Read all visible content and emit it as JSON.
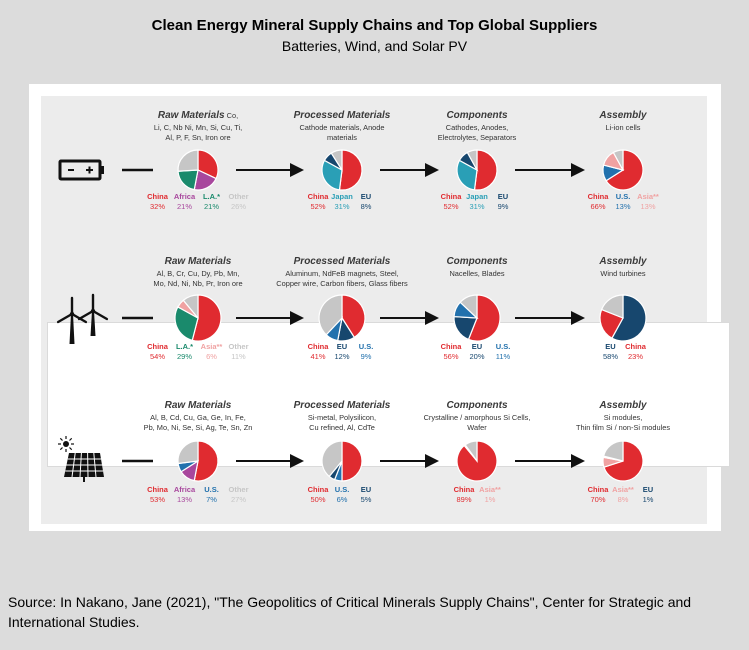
{
  "title": "Clean Energy Mineral Supply Chains and Top Global Suppliers",
  "subtitle": "Batteries, Wind, and Solar PV",
  "source": "Source: In Nakano, Jane (2021), \"The Geopolitics of Critical Minerals Supply Chains\", Center for Strategic and International Studies.",
  "colors": {
    "China": "#e02b30",
    "Africa": "#a8479d",
    "L.A.*": "#1a8a6c",
    "Other": "#c6c6c6",
    "Japan": "#2a9fb6",
    "EU": "#17476e",
    "U.S.": "#2271ad",
    "Asia**": "#f0a2a2"
  },
  "chart_data": [
    {
      "type": "pie",
      "row": "Batteries",
      "icon": "battery-icon",
      "stage": "Raw Materials",
      "desc": [
        "Li, C, Nb Ni, Mn, Si, Cu, Ti,",
        "Al, P, F, Sn, Iron ore"
      ],
      "heading_inline": "Co,",
      "slices": [
        {
          "name": "China",
          "value": 32
        },
        {
          "name": "Africa",
          "value": 21
        },
        {
          "name": "L.A.*",
          "value": 21
        },
        {
          "name": "Other",
          "value": 26
        }
      ],
      "labels": [
        {
          "name": "China",
          "value": "32%"
        },
        {
          "name": "Africa",
          "value": "21%"
        },
        {
          "name": "L.A.*",
          "value": "21%"
        },
        {
          "name": "Other",
          "value": "26%"
        }
      ]
    },
    {
      "type": "pie",
      "row": "Batteries",
      "stage": "Processed Materials",
      "desc": [
        "Cathode materials, Anode",
        "materials"
      ],
      "slices": [
        {
          "name": "China",
          "value": 52
        },
        {
          "name": "Japan",
          "value": 31
        },
        {
          "name": "EU",
          "value": 8
        },
        {
          "name": "Other",
          "value": 9
        }
      ],
      "labels": [
        {
          "name": "China",
          "value": "52%"
        },
        {
          "name": "Japan",
          "value": "31%"
        },
        {
          "name": "EU",
          "value": "8%"
        }
      ]
    },
    {
      "type": "pie",
      "row": "Batteries",
      "stage": "Components",
      "desc": [
        "Cathodes, Anodes,",
        "Electrolytes, Separators"
      ],
      "slices": [
        {
          "name": "China",
          "value": 52
        },
        {
          "name": "Japan",
          "value": 31
        },
        {
          "name": "EU",
          "value": 9
        },
        {
          "name": "Other",
          "value": 8
        }
      ],
      "labels": [
        {
          "name": "China",
          "value": "52%"
        },
        {
          "name": "Japan",
          "value": "31%"
        },
        {
          "name": "EU",
          "value": "9%"
        }
      ]
    },
    {
      "type": "pie",
      "row": "Batteries",
      "stage": "Assembly",
      "desc": [
        "Li-ion cells"
      ],
      "slices": [
        {
          "name": "China",
          "value": 66
        },
        {
          "name": "U.S.",
          "value": 13
        },
        {
          "name": "Asia**",
          "value": 13
        },
        {
          "name": "Other",
          "value": 8
        }
      ],
      "labels": [
        {
          "name": "China",
          "value": "66%"
        },
        {
          "name": "U.S.",
          "value": "13%"
        },
        {
          "name": "Asia**",
          "value": "13%"
        }
      ]
    },
    {
      "type": "pie",
      "row": "Wind",
      "icon": "wind-turbine-icon",
      "stage": "Raw Materials",
      "desc": [
        "Al, B, Cr, Cu, Dy, Pb, Mn,",
        "Mo, Nd, Ni, Nb, Pr, Iron ore"
      ],
      "slices": [
        {
          "name": "China",
          "value": 54
        },
        {
          "name": "L.A.*",
          "value": 29
        },
        {
          "name": "Asia**",
          "value": 6
        },
        {
          "name": "Other",
          "value": 11
        }
      ],
      "labels": [
        {
          "name": "China",
          "value": "54%"
        },
        {
          "name": "L.A.*",
          "value": "29%"
        },
        {
          "name": "Asia**",
          "value": "6%"
        },
        {
          "name": "Other",
          "value": "11%"
        }
      ]
    },
    {
      "type": "pie",
      "row": "Wind",
      "stage": "Processed Materials",
      "desc": [
        "Aluminum, NdFeB magnets, Steel,",
        "Copper wire, Carbon fibers, Glass fibers"
      ],
      "slices": [
        {
          "name": "China",
          "value": 41
        },
        {
          "name": "EU",
          "value": 12
        },
        {
          "name": "U.S.",
          "value": 9
        },
        {
          "name": "Other",
          "value": 38
        }
      ],
      "labels": [
        {
          "name": "China",
          "value": "41%"
        },
        {
          "name": "EU",
          "value": "12%"
        },
        {
          "name": "U.S.",
          "value": "9%"
        }
      ]
    },
    {
      "type": "pie",
      "row": "Wind",
      "stage": "Components",
      "desc": [
        "Nacelles, Blades"
      ],
      "slices": [
        {
          "name": "China",
          "value": 56
        },
        {
          "name": "EU",
          "value": 20
        },
        {
          "name": "U.S.",
          "value": 11
        },
        {
          "name": "Other",
          "value": 13
        }
      ],
      "labels": [
        {
          "name": "China",
          "value": "56%"
        },
        {
          "name": "EU",
          "value": "20%"
        },
        {
          "name": "U.S.",
          "value": "11%"
        }
      ]
    },
    {
      "type": "pie",
      "row": "Wind",
      "stage": "Assembly",
      "desc": [
        "Wind turbines"
      ],
      "slices": [
        {
          "name": "EU",
          "value": 58
        },
        {
          "name": "China",
          "value": 23
        },
        {
          "name": "Other",
          "value": 19
        }
      ],
      "labels": [
        {
          "name": "EU",
          "value": "58%"
        },
        {
          "name": "China",
          "value": "23%"
        }
      ]
    },
    {
      "type": "pie",
      "row": "Solar PV",
      "icon": "solar-panel-icon",
      "stage": "Raw Materials",
      "desc": [
        "Al, B, Cd, Cu, Ga, Ge, In, Fe,",
        "Pb, Mo, Ni, Se, Si, Ag, Te, Sn, Zn"
      ],
      "slices": [
        {
          "name": "China",
          "value": 53
        },
        {
          "name": "Africa",
          "value": 13
        },
        {
          "name": "U.S.",
          "value": 7
        },
        {
          "name": "Other",
          "value": 27
        }
      ],
      "labels": [
        {
          "name": "China",
          "value": "53%"
        },
        {
          "name": "Africa",
          "value": "13%"
        },
        {
          "name": "U.S.",
          "value": "7%"
        },
        {
          "name": "Other",
          "value": "27%"
        }
      ]
    },
    {
      "type": "pie",
      "row": "Solar PV",
      "stage": "Processed Materials",
      "desc": [
        "Si-metal, Polysilicon,",
        "Cu refined, Al, CdTe"
      ],
      "slices": [
        {
          "name": "China",
          "value": 50
        },
        {
          "name": "U.S.",
          "value": 6
        },
        {
          "name": "EU",
          "value": 5
        },
        {
          "name": "Other",
          "value": 39
        }
      ],
      "labels": [
        {
          "name": "China",
          "value": "50%"
        },
        {
          "name": "U.S.",
          "value": "6%"
        },
        {
          "name": "EU",
          "value": "5%"
        }
      ]
    },
    {
      "type": "pie",
      "row": "Solar PV",
      "stage": "Components",
      "desc": [
        "Crystalline / amorphous Si Cells,",
        "Wafer"
      ],
      "slices": [
        {
          "name": "China",
          "value": 89
        },
        {
          "name": "Asia**",
          "value": 1
        },
        {
          "name": "Other",
          "value": 10
        }
      ],
      "labels": [
        {
          "name": "China",
          "value": "89%"
        },
        {
          "name": "Asia**",
          "value": "1%"
        }
      ]
    },
    {
      "type": "pie",
      "row": "Solar PV",
      "stage": "Assembly",
      "desc": [
        "Si modules,",
        "Thin film Si / non-Si modules"
      ],
      "slices": [
        {
          "name": "China",
          "value": 70
        },
        {
          "name": "Asia**",
          "value": 8
        },
        {
          "name": "EU",
          "value": 1
        },
        {
          "name": "Other",
          "value": 21
        }
      ],
      "labels": [
        {
          "name": "China",
          "value": "70%"
        },
        {
          "name": "Asia**",
          "value": "8%"
        },
        {
          "name": "EU",
          "value": "1%"
        }
      ]
    }
  ]
}
